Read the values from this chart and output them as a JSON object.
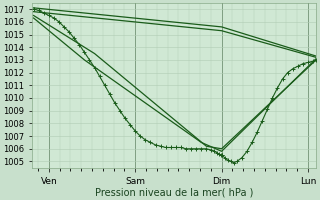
{
  "xlabel": "Pression niveau de la mer( hPa )",
  "bg_color": "#c8e0cc",
  "plot_bg_color": "#d0e8d4",
  "grid_color": "#b0ccb4",
  "line_color": "#1a5c1a",
  "ylim": [
    1004.5,
    1017.5
  ],
  "yticks": [
    1005,
    1006,
    1007,
    1008,
    1009,
    1010,
    1011,
    1012,
    1013,
    1014,
    1015,
    1016,
    1017
  ],
  "day_labels": [
    "Ven",
    "Sam",
    "Dim",
    "Lun"
  ],
  "day_positions": [
    0.15,
    1.0,
    1.85,
    2.7
  ],
  "xlim": [
    -0.02,
    2.78
  ],
  "lines": [
    {
      "name": "line_upper_flat1",
      "x": [
        0.0,
        1.85,
        2.78
      ],
      "y": [
        1016.8,
        1015.3,
        1013.2
      ],
      "marker": false,
      "linewidth": 0.9
    },
    {
      "name": "line_upper_flat2",
      "x": [
        0.0,
        1.85,
        2.78
      ],
      "y": [
        1017.1,
        1015.6,
        1013.3
      ],
      "marker": false,
      "linewidth": 0.9
    },
    {
      "name": "line_lower_triangle",
      "x": [
        0.0,
        0.6,
        1.7,
        1.85,
        2.78
      ],
      "y": [
        1016.5,
        1013.5,
        1006.2,
        1006.0,
        1013.0
      ],
      "marker": false,
      "linewidth": 0.9
    },
    {
      "name": "line_lower_triangle2",
      "x": [
        0.0,
        0.5,
        1.65,
        1.85,
        2.78
      ],
      "y": [
        1016.3,
        1013.0,
        1006.5,
        1005.8,
        1013.1
      ],
      "marker": false,
      "linewidth": 0.9
    },
    {
      "name": "dense_drop_markers",
      "x": [
        0.0,
        0.05,
        0.1,
        0.15,
        0.2,
        0.25,
        0.3,
        0.35,
        0.4,
        0.45,
        0.5,
        0.55,
        0.6,
        0.65,
        0.7,
        0.75,
        0.8,
        0.85,
        0.9,
        0.95,
        1.0,
        1.05,
        1.1,
        1.15,
        1.2,
        1.25,
        1.3,
        1.35,
        1.4,
        1.45,
        1.5,
        1.55,
        1.6,
        1.65,
        1.7,
        1.75,
        1.78,
        1.8,
        1.82,
        1.84,
        1.85
      ],
      "y": [
        1017.0,
        1016.9,
        1016.7,
        1016.5,
        1016.3,
        1016.0,
        1015.6,
        1015.2,
        1014.7,
        1014.2,
        1013.6,
        1013.0,
        1012.4,
        1011.7,
        1011.0,
        1010.3,
        1009.6,
        1009.0,
        1008.4,
        1007.9,
        1007.4,
        1007.0,
        1006.7,
        1006.5,
        1006.3,
        1006.2,
        1006.1,
        1006.1,
        1006.1,
        1006.1,
        1006.0,
        1006.0,
        1006.0,
        1006.0,
        1006.0,
        1005.9,
        1005.8,
        1005.7,
        1005.6,
        1005.5,
        1005.5
      ],
      "marker": true,
      "linewidth": 0.8
    },
    {
      "name": "recovery_markers",
      "x": [
        1.85,
        1.88,
        1.91,
        1.94,
        1.97,
        2.0,
        2.05,
        2.1,
        2.15,
        2.2,
        2.25,
        2.3,
        2.35,
        2.4,
        2.45,
        2.5,
        2.55,
        2.6,
        2.65,
        2.7,
        2.75,
        2.78
      ],
      "y": [
        1005.5,
        1005.3,
        1005.1,
        1005.0,
        1004.9,
        1005.0,
        1005.3,
        1005.8,
        1006.5,
        1007.3,
        1008.2,
        1009.1,
        1010.0,
        1010.8,
        1011.5,
        1012.0,
        1012.3,
        1012.5,
        1012.7,
        1012.8,
        1012.9,
        1013.0
      ],
      "marker": true,
      "linewidth": 0.8
    }
  ]
}
